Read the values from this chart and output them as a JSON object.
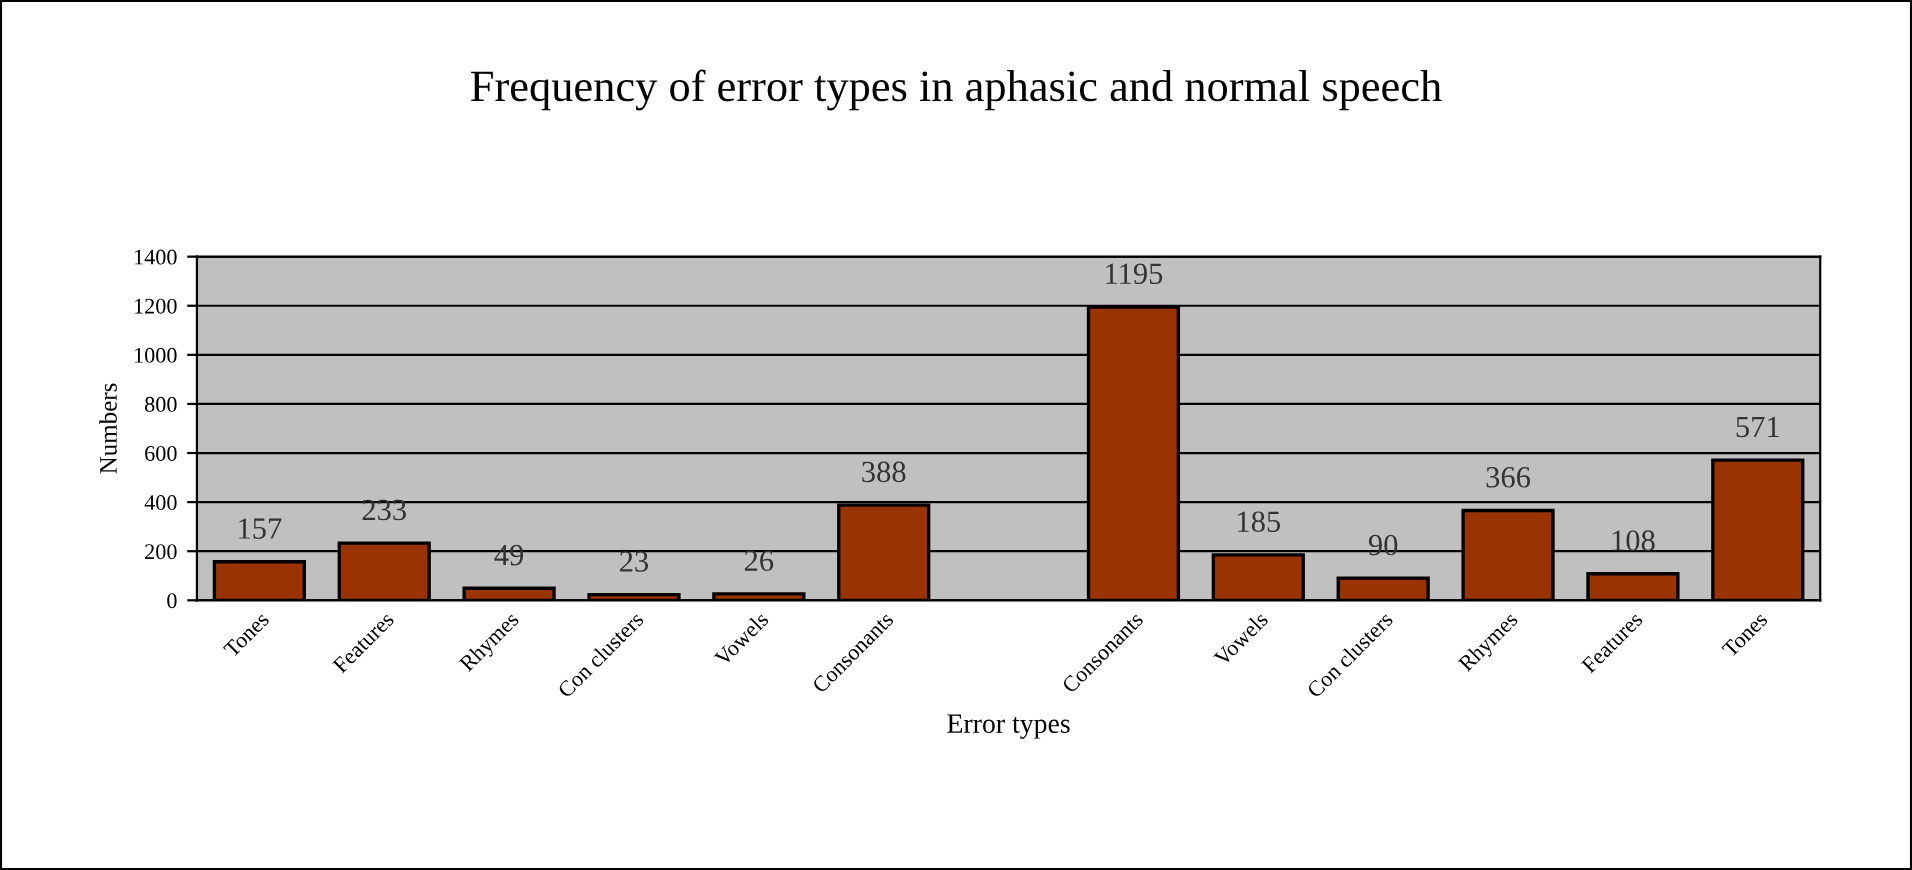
{
  "chart_data": {
    "type": "bar",
    "title": "Frequency of error types in aphasic and normal speech",
    "xlabel": "Error types",
    "ylabel": "Numbers",
    "categories": [
      "Tones",
      "Features",
      "Rhymes",
      "Con clusters",
      "Vowels",
      "Consonants",
      null,
      "Consonants",
      "Vowels",
      "Con clusters",
      "Rhymes",
      "Features",
      "Tones"
    ],
    "values": [
      157,
      233,
      49,
      23,
      26,
      388,
      null,
      1195,
      185,
      90,
      366,
      108,
      571
    ],
    "color": "#993300",
    "data_labels": true,
    "ylim": [
      0,
      1400
    ],
    "yticks": [
      0,
      200,
      400,
      600,
      800,
      1000,
      1200,
      1400
    ],
    "grid": "y",
    "legend": false
  }
}
